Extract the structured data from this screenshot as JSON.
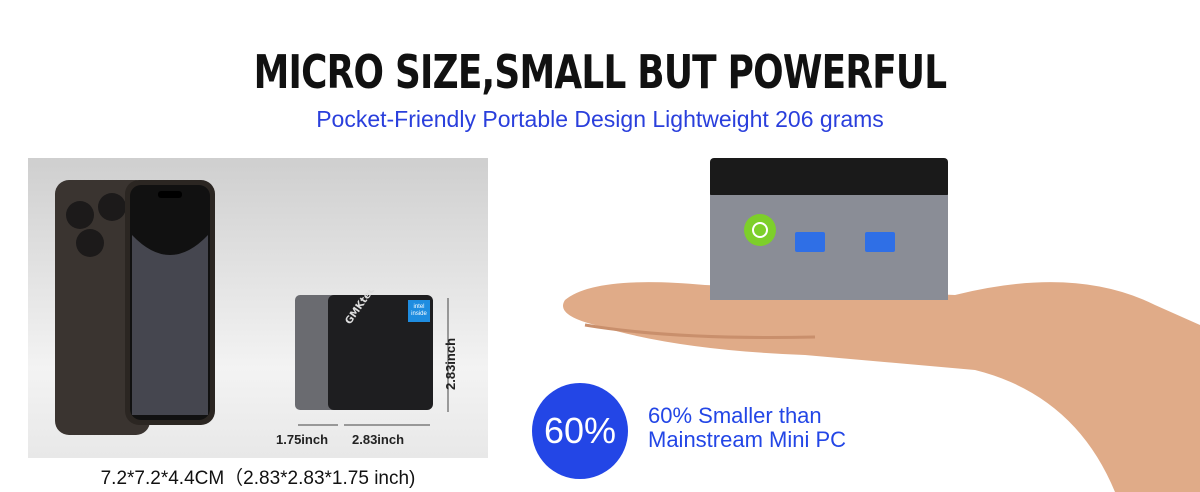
{
  "header": {
    "title": "MICRO SIZE,SMALL BUT POWERFUL",
    "subtitle": "Pocket-Friendly Portable Design Lightweight 206 grams"
  },
  "size_comparison": {
    "brand_logo": "GMKtec",
    "chip_badge": "intel inside",
    "height_label": "2.83inch",
    "depth_label": "1.75inch",
    "width_label": "2.83inch",
    "caption": "7.2*7.2*4.4CM（2.83*2.83*1.75 inch)"
  },
  "highlight": {
    "badge": "60%",
    "line1": "60% Smaller than",
    "line2": "Mainstream Mini PC"
  },
  "colors": {
    "accent_blue": "#2346e6",
    "power_button": "#7dcf2a",
    "usb_port": "#2f6fe6"
  }
}
